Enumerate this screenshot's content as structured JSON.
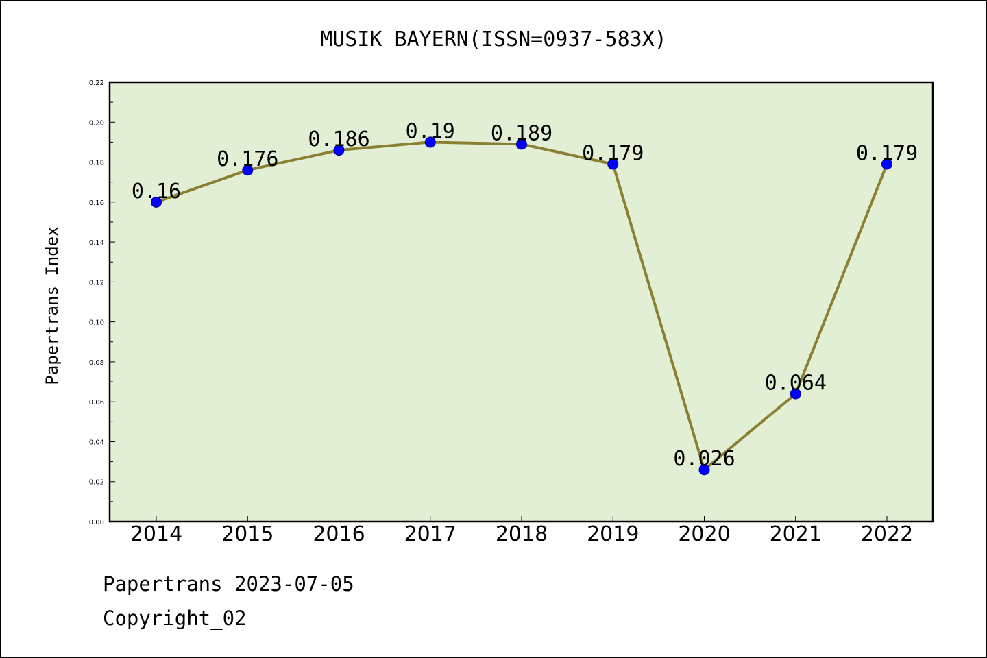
{
  "footer": {
    "line1": "Papertrans 2023-07-05",
    "line2": "Copyright_02"
  },
  "chart_data": {
    "type": "line",
    "title": "MUSIK BAYERN(ISSN=0937-583X)",
    "xlabel": "",
    "ylabel": "Papertrans Index",
    "categories": [
      "2014",
      "2015",
      "2016",
      "2017",
      "2018",
      "2019",
      "2020",
      "2021",
      "2022"
    ],
    "series": [
      {
        "values": [
          0.16,
          0.176,
          0.186,
          0.19,
          0.189,
          0.179,
          0.026,
          0.064,
          0.179
        ],
        "data_labels": [
          "0.16",
          "0.176",
          "0.186",
          "0.19",
          "0.189",
          "0.179",
          "0.026",
          "0.064",
          "0.179"
        ]
      }
    ],
    "ylim": [
      0.0,
      0.22
    ],
    "yticks": [
      "0.00",
      "0.02",
      "0.04",
      "0.06",
      "0.08",
      "0.10",
      "0.12",
      "0.14",
      "0.16",
      "0.18",
      "0.20",
      "0.22"
    ],
    "grid": false,
    "legend": "none",
    "colors": {
      "plot_background": "#e2efd5",
      "line": "#8b8032",
      "marker": "#0000ff",
      "marker_edge": "#00008b"
    }
  }
}
